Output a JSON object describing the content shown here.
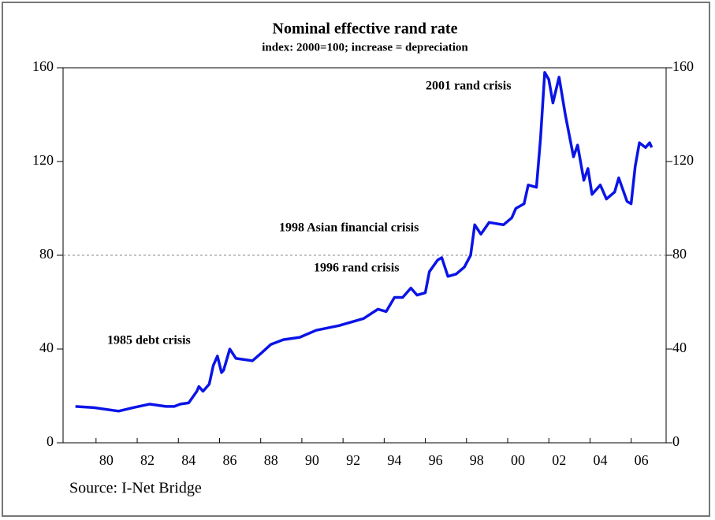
{
  "chart_data": {
    "type": "line",
    "title": "Nominal effective rand rate",
    "subtitle": "index: 2000=100; increase = depreciation",
    "source": "Source: I-Net Bridge",
    "annotations": [
      "2001 rand crisis",
      "1998  Asian financial crisis",
      "1996 rand crisis",
      "1985  debt crisis"
    ],
    "xlim": [
      1977.9,
      2007.2
    ],
    "xticks": [
      {
        "value": 1980,
        "label": "80"
      },
      {
        "value": 1982,
        "label": "82"
      },
      {
        "value": 1984,
        "label": "84"
      },
      {
        "value": 1986,
        "label": "86"
      },
      {
        "value": 1988,
        "label": "88"
      },
      {
        "value": 1990,
        "label": "90"
      },
      {
        "value": 1992,
        "label": "92"
      },
      {
        "value": 1994,
        "label": "94"
      },
      {
        "value": 1996,
        "label": "96"
      },
      {
        "value": 1998,
        "label": "98"
      },
      {
        "value": 2000,
        "label": "00"
      },
      {
        "value": 2002,
        "label": "02"
      },
      {
        "value": 2004,
        "label": "04"
      },
      {
        "value": 2006,
        "label": "06"
      }
    ],
    "ylim": [
      0,
      160
    ],
    "yticks": [
      0,
      40,
      80,
      120,
      160
    ],
    "reference_line": 80,
    "series": [
      {
        "color": "#0a14e6",
        "x": [
          1978.5,
          1979.4,
          1980.6,
          1981.3,
          1982.1,
          1982.9,
          1983.3,
          1983.6,
          1984.0,
          1984.4,
          1984.5,
          1984.7,
          1985.0,
          1985.2,
          1985.4,
          1985.6,
          1985.7,
          1986.0,
          1986.3,
          1987.1,
          1987.5,
          1988.0,
          1988.6,
          1989.4,
          1990.2,
          1991.3,
          1992.5,
          1993.2,
          1993.6,
          1994.0,
          1994.4,
          1994.8,
          1995.1,
          1995.5,
          1995.7,
          1996.1,
          1996.3,
          1996.6,
          1997.0,
          1997.4,
          1997.7,
          1997.9,
          1998.2,
          1998.6,
          1999.3,
          1999.7,
          1999.9,
          2000.3,
          2000.5,
          2000.9,
          2001.1,
          2001.3,
          2001.5,
          2001.7,
          2002.0,
          2002.3,
          2002.7,
          2002.9,
          2003.2,
          2003.4,
          2003.6,
          2004.0,
          2004.3,
          2004.7,
          2004.9,
          2005.3,
          2005.5,
          2005.7,
          2005.9,
          2006.2,
          2006.4,
          2006.5
        ],
        "values": [
          15.5,
          15,
          13.5,
          15,
          16.5,
          15.5,
          15.5,
          16.5,
          17,
          22,
          24,
          22,
          25,
          33,
          37,
          30,
          31,
          40,
          36,
          35,
          38,
          42,
          44,
          45,
          48,
          50,
          53,
          57,
          56,
          62,
          62,
          66,
          63,
          64,
          73,
          78,
          79,
          71,
          72,
          75,
          80,
          93,
          89,
          94,
          93,
          96,
          100,
          102,
          110,
          109,
          130,
          158,
          155,
          145,
          156,
          140,
          122,
          127,
          112,
          117,
          106,
          110,
          104,
          107,
          113,
          103,
          102,
          118,
          128,
          126,
          128,
          126
        ]
      }
    ]
  }
}
